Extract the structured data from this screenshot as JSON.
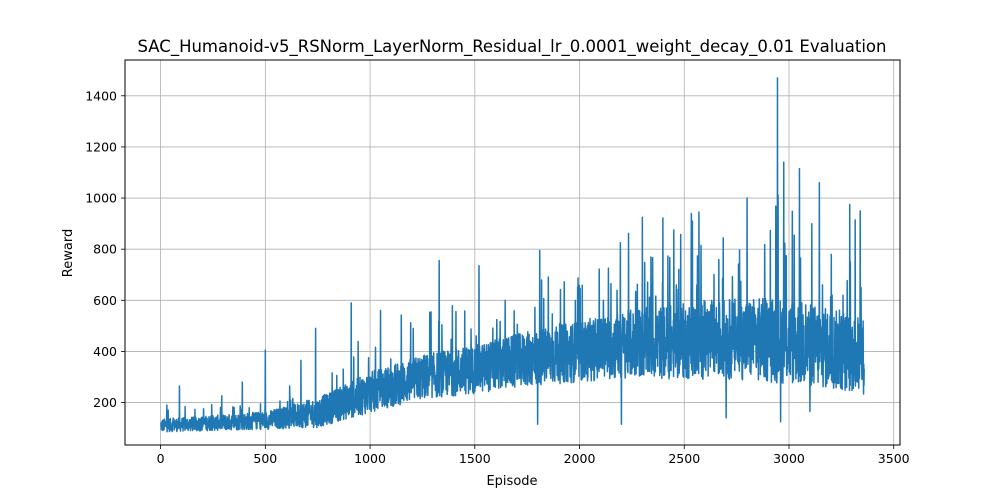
{
  "chart_data": {
    "type": "line",
    "title": "SAC_Humanoid-v5_RSNorm_LayerNorm_Residual_lr_0.0001_weight_decay_0.01 Evaluation",
    "xlabel": "Episode",
    "ylabel": "Reward",
    "xlim": [
      -170,
      3530
    ],
    "ylim": [
      34,
      1540
    ],
    "x_ticks": [
      0,
      500,
      1000,
      1500,
      2000,
      2500,
      3000,
      3500
    ],
    "y_ticks": [
      200,
      400,
      600,
      800,
      1000,
      1200,
      1400
    ],
    "grid": true,
    "legend": "none",
    "line_color": "#1f77b4",
    "num_episodes": 3360,
    "trend": [
      {
        "x": 0,
        "y": 110
      },
      {
        "x": 250,
        "y": 120
      },
      {
        "x": 500,
        "y": 130
      },
      {
        "x": 750,
        "y": 160
      },
      {
        "x": 1000,
        "y": 240
      },
      {
        "x": 1250,
        "y": 300
      },
      {
        "x": 1500,
        "y": 330
      },
      {
        "x": 1750,
        "y": 370
      },
      {
        "x": 2000,
        "y": 400
      },
      {
        "x": 2250,
        "y": 430
      },
      {
        "x": 2500,
        "y": 440
      },
      {
        "x": 2750,
        "y": 450
      },
      {
        "x": 3000,
        "y": 440
      },
      {
        "x": 3250,
        "y": 400
      },
      {
        "x": 3360,
        "y": 380
      }
    ],
    "spread": [
      {
        "x": 0,
        "y": 25
      },
      {
        "x": 500,
        "y": 35
      },
      {
        "x": 1000,
        "y": 80
      },
      {
        "x": 1500,
        "y": 95
      },
      {
        "x": 2000,
        "y": 120
      },
      {
        "x": 2500,
        "y": 150
      },
      {
        "x": 3000,
        "y": 170
      },
      {
        "x": 3360,
        "y": 150
      }
    ],
    "peaks": [
      {
        "x": 30,
        "y": 190
      },
      {
        "x": 90,
        "y": 265
      },
      {
        "x": 390,
        "y": 280
      },
      {
        "x": 500,
        "y": 405
      },
      {
        "x": 670,
        "y": 365
      },
      {
        "x": 740,
        "y": 490
      },
      {
        "x": 910,
        "y": 590
      },
      {
        "x": 1050,
        "y": 560
      },
      {
        "x": 1330,
        "y": 755
      },
      {
        "x": 1520,
        "y": 735
      },
      {
        "x": 1810,
        "y": 795
      },
      {
        "x": 2195,
        "y": 825
      },
      {
        "x": 2300,
        "y": 925
      },
      {
        "x": 2450,
        "y": 875
      },
      {
        "x": 2570,
        "y": 945
      },
      {
        "x": 2800,
        "y": 1000
      },
      {
        "x": 2945,
        "y": 1470
      },
      {
        "x": 2975,
        "y": 1140
      },
      {
        "x": 3050,
        "y": 1115
      },
      {
        "x": 3145,
        "y": 1060
      },
      {
        "x": 3290,
        "y": 975
      },
      {
        "x": 3340,
        "y": 950
      }
    ],
    "dips": [
      {
        "x": 1800,
        "y": 115
      },
      {
        "x": 2200,
        "y": 115
      },
      {
        "x": 2700,
        "y": 140
      },
      {
        "x": 2960,
        "y": 125
      },
      {
        "x": 3100,
        "y": 165
      }
    ]
  }
}
